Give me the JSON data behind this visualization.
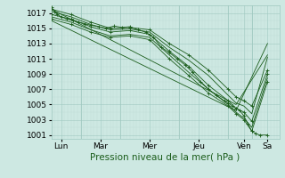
{
  "bg_color": "#cde8e2",
  "grid_major_color": "#9fc8c0",
  "grid_minor_color": "#b8d8d2",
  "line_color": "#1a5c1a",
  "xlim": [
    0,
    5.8
  ],
  "ylim": [
    1000.5,
    1018.0
  ],
  "yticks": [
    1001,
    1003,
    1005,
    1007,
    1009,
    1011,
    1013,
    1015,
    1017
  ],
  "xtick_labels": [
    "Lun",
    "Mar",
    "Mer",
    "Jeu",
    "Ven",
    "Sa"
  ],
  "xtick_positions": [
    0.25,
    1.25,
    2.5,
    3.75,
    4.9,
    5.5
  ],
  "xvlines": [
    0.75,
    1.75,
    3.25,
    4.5,
    5.1
  ],
  "xlabel": "Pression niveau de la mer( hPa )",
  "series": [
    {
      "x": [
        0.0,
        0.08,
        0.15,
        0.25,
        0.4,
        0.55,
        0.7,
        0.85,
        1.0,
        1.2,
        1.4,
        1.6,
        1.8,
        2.0,
        2.2,
        2.4,
        2.6,
        2.8,
        3.0,
        3.2,
        3.4,
        3.6,
        3.8,
        4.0,
        4.2,
        4.4,
        4.5,
        4.6,
        4.7,
        4.8,
        4.9,
        5.0,
        5.1,
        5.2,
        5.3,
        5.5
      ],
      "y": [
        1017.8,
        1017.2,
        1016.8,
        1016.5,
        1016.2,
        1016.0,
        1015.8,
        1015.6,
        1015.4,
        1015.2,
        1015.0,
        1015.3,
        1015.1,
        1015.2,
        1014.8,
        1014.5,
        1013.8,
        1012.5,
        1011.8,
        1011.0,
        1010.2,
        1009.2,
        1008.0,
        1007.0,
        1006.2,
        1005.5,
        1005.2,
        1004.8,
        1004.5,
        1004.2,
        1003.5,
        1002.5,
        1001.5,
        1001.2,
        1001.0,
        1001.0
      ],
      "marker": "+"
    },
    {
      "x": [
        0.0,
        0.5,
        1.0,
        1.5,
        2.0,
        2.5,
        3.0,
        3.5,
        4.0,
        4.5,
        4.7,
        4.9,
        5.1,
        5.5
      ],
      "y": [
        1017.5,
        1016.8,
        1015.8,
        1015.0,
        1015.1,
        1014.8,
        1013.0,
        1011.5,
        1009.5,
        1007.0,
        1006.0,
        1005.5,
        1004.8,
        1009.5
      ],
      "marker": "+"
    },
    {
      "x": [
        0.0,
        0.5,
        1.0,
        1.5,
        2.0,
        2.5,
        3.0,
        3.5,
        4.0,
        4.5,
        4.7,
        4.9,
        5.1,
        5.5
      ],
      "y": [
        1017.2,
        1016.5,
        1015.5,
        1014.8,
        1014.9,
        1014.5,
        1012.5,
        1010.8,
        1008.8,
        1006.2,
        1005.2,
        1004.8,
        1003.8,
        1011.2
      ],
      "marker": null
    },
    {
      "x": [
        0.0,
        0.5,
        1.0,
        1.5,
        2.0,
        2.5,
        3.0,
        3.5,
        4.0,
        4.5,
        4.7,
        4.9,
        5.1,
        5.5
      ],
      "y": [
        1016.8,
        1016.2,
        1015.2,
        1014.5,
        1014.7,
        1014.2,
        1012.0,
        1010.0,
        1007.5,
        1005.5,
        1004.5,
        1004.0,
        1002.8,
        1009.0
      ],
      "marker": "+"
    },
    {
      "x": [
        0.0,
        0.5,
        1.0,
        1.5,
        2.0,
        2.5,
        3.0,
        3.5,
        4.0,
        4.5,
        4.7,
        4.9,
        5.1,
        5.5
      ],
      "y": [
        1016.5,
        1015.8,
        1014.8,
        1014.0,
        1014.2,
        1013.8,
        1011.5,
        1009.2,
        1007.0,
        1005.0,
        1004.0,
        1003.2,
        1002.0,
        1008.5
      ],
      "marker": null
    },
    {
      "x": [
        0.0,
        0.5,
        1.0,
        1.5,
        2.0,
        2.5,
        3.0,
        3.5,
        4.0,
        4.5,
        4.7,
        4.9,
        5.1,
        5.5
      ],
      "y": [
        1016.2,
        1015.5,
        1014.5,
        1013.8,
        1014.0,
        1013.5,
        1011.0,
        1008.8,
        1006.5,
        1004.8,
        1003.8,
        1003.0,
        1001.5,
        1008.0
      ],
      "marker": "+"
    },
    {
      "x": [
        0.0,
        4.7,
        5.5
      ],
      "y": [
        1017.5,
        1005.0,
        1011.5
      ],
      "marker": null
    },
    {
      "x": [
        0.0,
        4.7,
        5.5
      ],
      "y": [
        1016.0,
        1004.2,
        1013.0
      ],
      "marker": null
    }
  ]
}
